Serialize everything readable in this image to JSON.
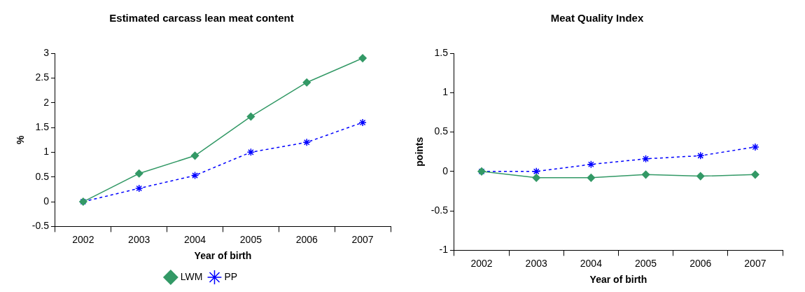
{
  "chart_data": [
    {
      "type": "line",
      "title": "Estimated carcass lean meat content",
      "xlabel": "Year of birth",
      "ylabel": "%",
      "categories": [
        "2002",
        "2003",
        "2004",
        "2005",
        "2006",
        "2007"
      ],
      "ylim": [
        -0.5,
        3
      ],
      "yticks": [
        -0.5,
        0,
        0.5,
        1,
        1.5,
        2,
        2.5,
        3
      ],
      "grid": false,
      "legend": "bottom",
      "series": [
        {
          "name": "LWM",
          "color": "#339966",
          "values": [
            0,
            0.57,
            0.93,
            1.72,
            2.41,
            2.9
          ],
          "marker": "diamond",
          "line_style": "solid"
        },
        {
          "name": "PP",
          "color": "#0000ff",
          "values": [
            0,
            0.27,
            0.53,
            1.0,
            1.2,
            1.6
          ],
          "marker": "cross",
          "line_style": "dashed"
        }
      ]
    },
    {
      "type": "line",
      "title": "Meat Quality Index",
      "xlabel": "Year of birth",
      "ylabel": "points",
      "categories": [
        "2002",
        "2003",
        "2004",
        "2005",
        "2006",
        "2007"
      ],
      "ylim": [
        -1,
        1.5
      ],
      "yticks": [
        -1,
        -0.5,
        0,
        0.5,
        1,
        1.5
      ],
      "grid": false,
      "legend": false,
      "series": [
        {
          "color": "#339966",
          "values": [
            0,
            -0.08,
            -0.08,
            -0.04,
            -0.06,
            -0.04
          ],
          "marker": "diamond",
          "line_style": "solid"
        },
        {
          "color": "#0000ff",
          "values": [
            0,
            0,
            0.09,
            0.16,
            0.2,
            0.31
          ],
          "marker": "cross",
          "line_style": "dashed"
        }
      ]
    }
  ]
}
